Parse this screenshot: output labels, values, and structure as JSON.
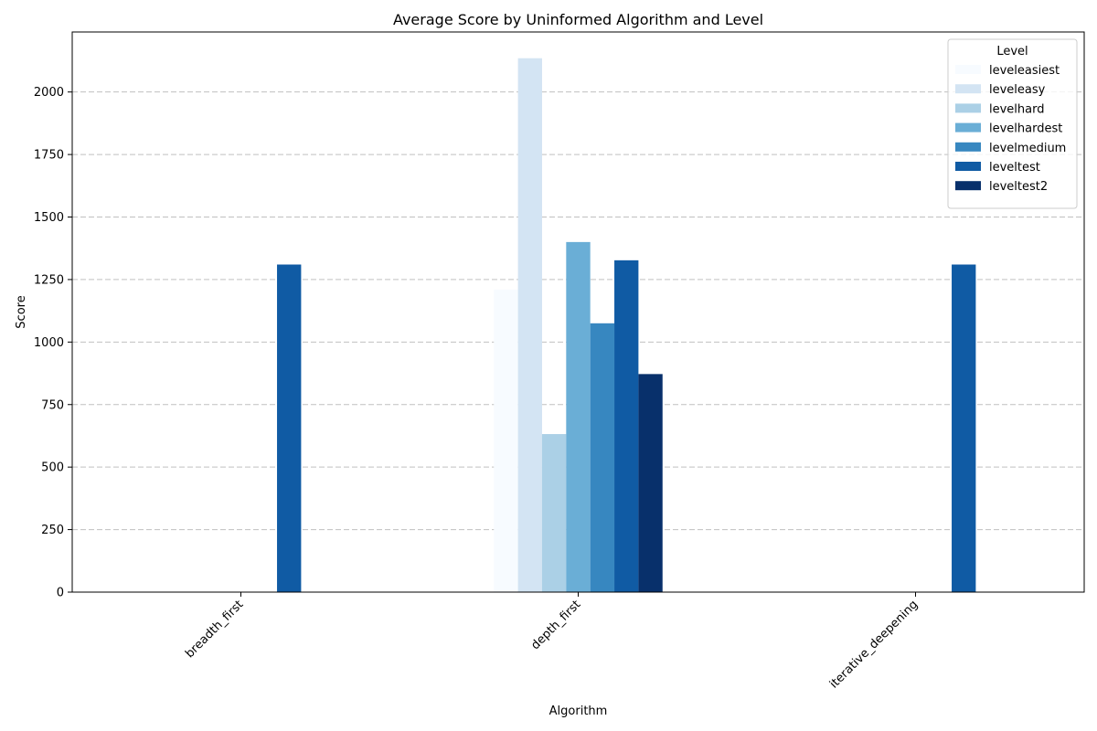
{
  "chart_data": {
    "type": "bar",
    "title": "Average Score by Uninformed Algorithm and Level",
    "xlabel": "Algorithm",
    "ylabel": "Score",
    "categories": [
      "breadth_first",
      "depth_first",
      "iterative_deepening"
    ],
    "ylim": [
      0,
      2240
    ],
    "yticks": [
      0,
      250,
      500,
      750,
      1000,
      1250,
      1500,
      1750,
      2000
    ],
    "grid": "y-dashed",
    "legend_title": "Level",
    "legend_position": "top-right",
    "series": [
      {
        "name": "leveleasiest",
        "color": "#f7fbff",
        "values": [
          0,
          1210,
          0
        ]
      },
      {
        "name": "leveleasy",
        "color": "#d3e4f3",
        "values": [
          0,
          2135,
          0
        ]
      },
      {
        "name": "levelhard",
        "color": "#abd0e6",
        "values": [
          0,
          632,
          0
        ]
      },
      {
        "name": "levelhardest",
        "color": "#6aaed6",
        "values": [
          0,
          1400,
          0
        ]
      },
      {
        "name": "levelmedium",
        "color": "#3787c0",
        "values": [
          0,
          1075,
          0
        ]
      },
      {
        "name": "leveltest",
        "color": "#105ba4",
        "values": [
          1310,
          1327,
          1310
        ]
      },
      {
        "name": "leveltest2",
        "color": "#08306b",
        "values": [
          0,
          872,
          0
        ]
      }
    ]
  }
}
